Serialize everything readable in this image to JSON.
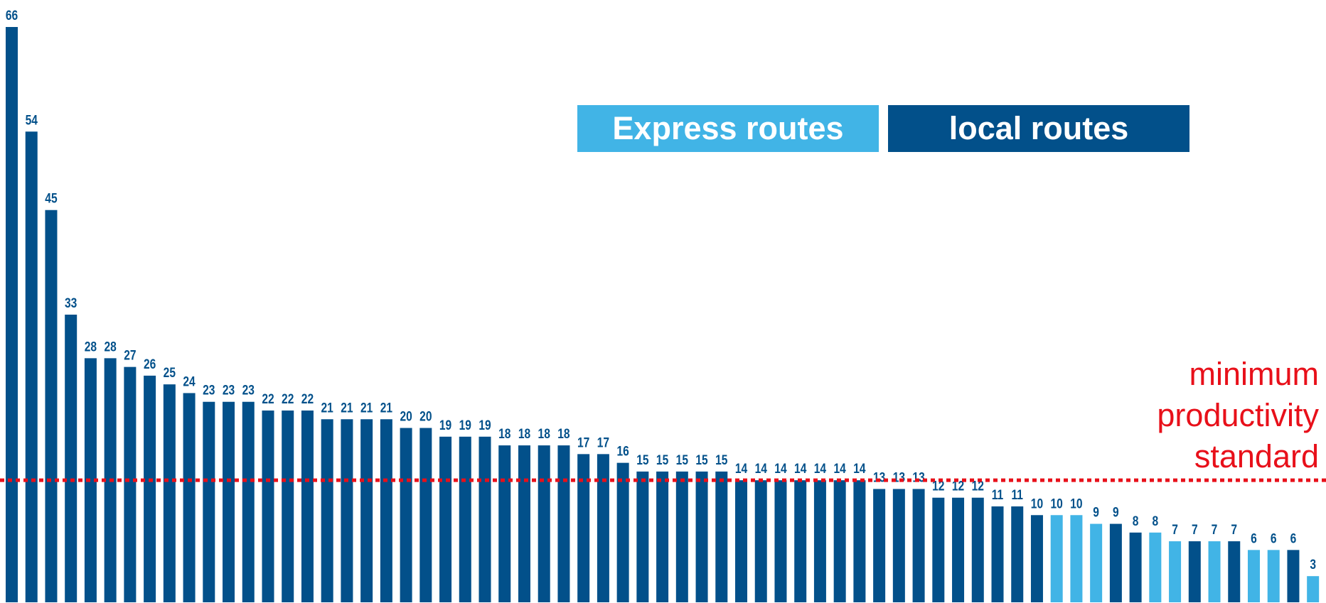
{
  "chart_data": {
    "type": "bar",
    "values": [
      66,
      54,
      45,
      33,
      28,
      28,
      27,
      26,
      25,
      24,
      23,
      23,
      23,
      22,
      22,
      22,
      21,
      21,
      21,
      21,
      20,
      20,
      19,
      19,
      19,
      18,
      18,
      18,
      18,
      17,
      17,
      16,
      15,
      15,
      15,
      15,
      15,
      14,
      14,
      14,
      14,
      14,
      14,
      14,
      13,
      13,
      13,
      12,
      12,
      12,
      11,
      11,
      10,
      10,
      10,
      9,
      9,
      8,
      8,
      7,
      7,
      7,
      7,
      6,
      6,
      6,
      3
    ],
    "route_type": [
      "local",
      "local",
      "local",
      "local",
      "local",
      "local",
      "local",
      "local",
      "local",
      "local",
      "local",
      "local",
      "local",
      "local",
      "local",
      "local",
      "local",
      "local",
      "local",
      "local",
      "local",
      "local",
      "local",
      "local",
      "local",
      "local",
      "local",
      "local",
      "local",
      "local",
      "local",
      "local",
      "local",
      "local",
      "local",
      "local",
      "local",
      "local",
      "local",
      "local",
      "local",
      "local",
      "local",
      "local",
      "local",
      "local",
      "local",
      "local",
      "local",
      "local",
      "local",
      "local",
      "local",
      "express",
      "express",
      "express",
      "local",
      "local",
      "express",
      "express",
      "local",
      "express",
      "local",
      "express",
      "express",
      "local",
      "express"
    ],
    "ylim": [
      0,
      66
    ],
    "threshold": {
      "value": 14,
      "label_lines": [
        "minimum",
        "productivity",
        "standard"
      ]
    },
    "legend": [
      {
        "name": "Express routes",
        "key": "express",
        "color": "#41b4e6"
      },
      {
        "name": "local routes",
        "key": "local",
        "color": "#02508a"
      }
    ],
    "colors": {
      "local": "#02508a",
      "express": "#41b4e6",
      "label": "#02508a",
      "threshold": "#e8101a"
    },
    "grid": false
  }
}
